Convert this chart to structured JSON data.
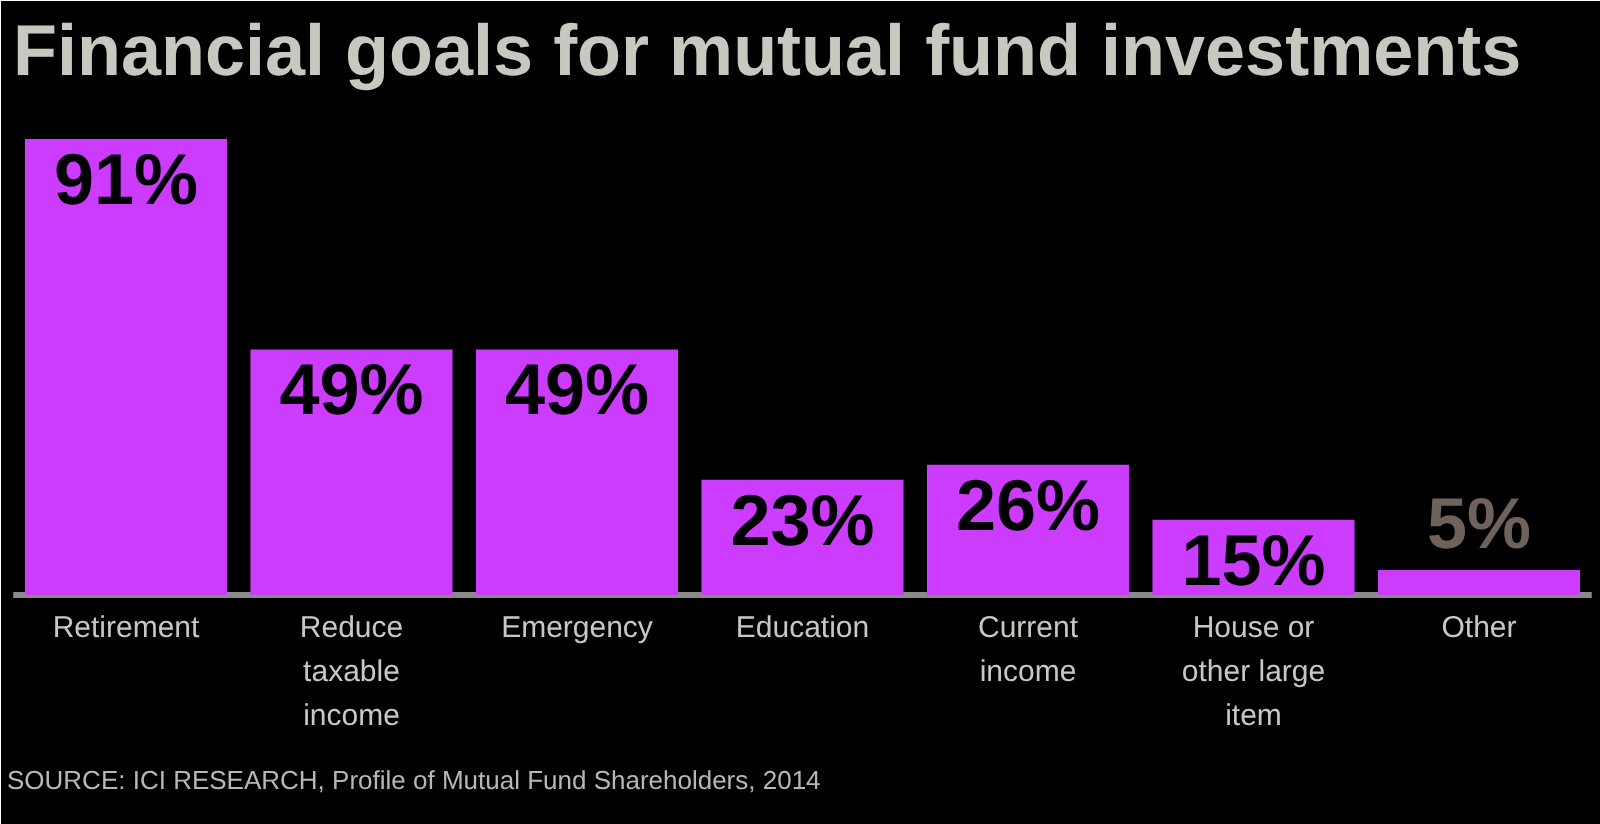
{
  "chart_data": {
    "type": "bar",
    "title": "Financial goals for mutual fund investments",
    "categories": [
      "Retirement",
      "Reduce taxable income",
      "Emergency",
      "Education",
      "Current income",
      "House or other large item",
      "Other"
    ],
    "values": [
      91,
      49,
      49,
      23,
      26,
      15,
      5
    ],
    "color": "#cc3cff",
    "value_labels": [
      "91%",
      "49%",
      "49%",
      "23%",
      "26%",
      "15%",
      "5%"
    ],
    "annotations": [
      "SOURCE: ICI RESEARCH, Profile of Mutual Fund Shareholders, 2014"
    ]
  }
}
